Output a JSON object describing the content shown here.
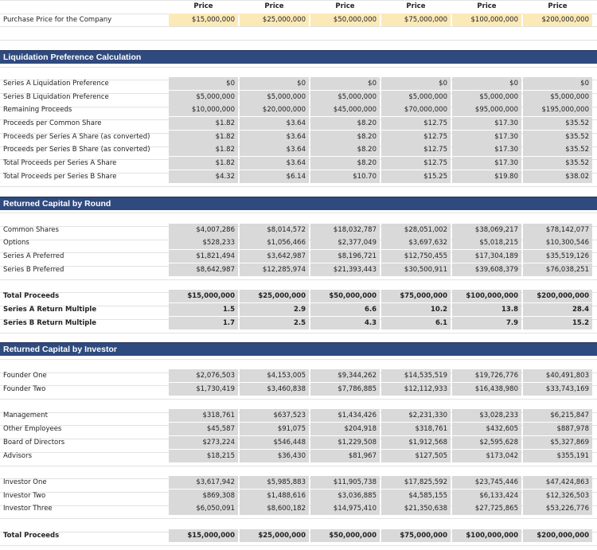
{
  "header": {
    "columns": [
      "Price",
      "Price",
      "Price",
      "Price",
      "Price",
      "Price"
    ]
  },
  "purchase": {
    "label": "Purchase Price for the Company",
    "values": [
      "$15,000,000",
      "$25,000,000",
      "$50,000,000",
      "$75,000,000",
      "$100,000,000",
      "$200,000,000"
    ]
  },
  "sections": [
    {
      "title": "Liquidation Preference Calculation",
      "groups": [
        {
          "rows": [
            {
              "label": "Series A Liquidation Preference",
              "values": [
                "$0",
                "$0",
                "$0",
                "$0",
                "$0",
                "$0"
              ]
            },
            {
              "label": "Series B Liquidation Preference",
              "values": [
                "$5,000,000",
                "$5,000,000",
                "$5,000,000",
                "$5,000,000",
                "$5,000,000",
                "$5,000,000"
              ]
            },
            {
              "label": "Remaining Proceeds",
              "values": [
                "$10,000,000",
                "$20,000,000",
                "$45,000,000",
                "$70,000,000",
                "$95,000,000",
                "$195,000,000"
              ]
            },
            {
              "label": "Proceeds per Common Share",
              "values": [
                "$1.82",
                "$3.64",
                "$8.20",
                "$12.75",
                "$17.30",
                "$35.52"
              ]
            },
            {
              "label": "Proceeds per Series A Share (as converted)",
              "values": [
                "$1.82",
                "$3.64",
                "$8.20",
                "$12.75",
                "$17.30",
                "$35.52"
              ]
            },
            {
              "label": "Proceeds per Series B Share (as converted)",
              "values": [
                "$1.82",
                "$3.64",
                "$8.20",
                "$12.75",
                "$17.30",
                "$35.52"
              ]
            },
            {
              "label": "Total Proceeds per Series A Share",
              "values": [
                "$1.82",
                "$3.64",
                "$8.20",
                "$12.75",
                "$17.30",
                "$35.52"
              ]
            },
            {
              "label": "Total Proceeds per Series B Share",
              "values": [
                "$4.32",
                "$6.14",
                "$10.70",
                "$15.25",
                "$19.80",
                "$38.02"
              ]
            }
          ]
        }
      ]
    },
    {
      "title": "Returned Capital by Round",
      "groups": [
        {
          "rows": [
            {
              "label": "Common Shares",
              "values": [
                "$4,007,286",
                "$8,014,572",
                "$18,032,787",
                "$28,051,002",
                "$38,069,217",
                "$78,142,077"
              ]
            },
            {
              "label": "Options",
              "values": [
                "$528,233",
                "$1,056,466",
                "$2,377,049",
                "$3,697,632",
                "$5,018,215",
                "$10,300,546"
              ]
            },
            {
              "label": "Series A Preferred",
              "values": [
                "$1,821,494",
                "$3,642,987",
                "$8,196,721",
                "$12,750,455",
                "$17,304,189",
                "$35,519,126"
              ]
            },
            {
              "label": "Series B Preferred",
              "values": [
                "$8,642,987",
                "$12,285,974",
                "$21,393,443",
                "$30,500,911",
                "$39,608,379",
                "$76,038,251"
              ]
            }
          ]
        },
        {
          "rows": [
            {
              "label": "Total Proceeds",
              "values": [
                "$15,000,000",
                "$25,000,000",
                "$50,000,000",
                "$75,000,000",
                "$100,000,000",
                "$200,000,000"
              ]
            },
            {
              "label": "Series A Return Multiple",
              "values": [
                "1.5",
                "2.9",
                "6.6",
                "10.2",
                "13.8",
                "28.4"
              ]
            },
            {
              "label": "Series B Return Multiple",
              "values": [
                "1.7",
                "2.5",
                "4.3",
                "6.1",
                "7.9",
                "15.2"
              ]
            }
          ]
        }
      ]
    },
    {
      "title": "Returned Capital by Investor",
      "groups": [
        {
          "rows": [
            {
              "label": "Founder One",
              "values": [
                "$2,076,503",
                "$4,153,005",
                "$9,344,262",
                "$14,535,519",
                "$19,726,776",
                "$40,491,803"
              ]
            },
            {
              "label": "Founder Two",
              "values": [
                "$1,730,419",
                "$3,460,838",
                "$7,786,885",
                "$12,112,933",
                "$16,438,980",
                "$33,743,169"
              ]
            }
          ]
        },
        {
          "rows": [
            {
              "label": "Management",
              "values": [
                "$318,761",
                "$637,523",
                "$1,434,426",
                "$2,231,330",
                "$3,028,233",
                "$6,215,847"
              ]
            },
            {
              "label": "Other Employees",
              "values": [
                "$45,587",
                "$91,075",
                "$204,918",
                "$318,761",
                "$432,605",
                "$887,978"
              ]
            },
            {
              "label": "Board of Directors",
              "values": [
                "$273,224",
                "$546,448",
                "$1,229,508",
                "$1,912,568",
                "$2,595,628",
                "$5,327,869"
              ]
            },
            {
              "label": "Advisors",
              "values": [
                "$18,215",
                "$36,430",
                "$81,967",
                "$127,505",
                "$173,042",
                "$355,191"
              ]
            }
          ]
        },
        {
          "rows": [
            {
              "label": "Investor One",
              "values": [
                "$3,617,942",
                "$5,985,883",
                "$11,905,738",
                "$17,825,592",
                "$23,745,446",
                "$47,424,863"
              ]
            },
            {
              "label": "Investor Two",
              "values": [
                "$869,308",
                "$1,488,616",
                "$3,036,885",
                "$4,585,155",
                "$6,133,424",
                "$12,326,503"
              ]
            },
            {
              "label": "Investor Three",
              "values": [
                "$6,050,091",
                "$8,600,182",
                "$14,975,410",
                "$21,350,638",
                "$27,725,865",
                "$53,226,776"
              ]
            }
          ]
        },
        {
          "rows": [
            {
              "label": "Total Proceeds",
              "values": [
                "$15,000,000",
                "$25,000,000",
                "$50,000,000",
                "$75,000,000",
                "$100,000,000",
                "$200,000,000"
              ]
            }
          ]
        }
      ]
    }
  ]
}
